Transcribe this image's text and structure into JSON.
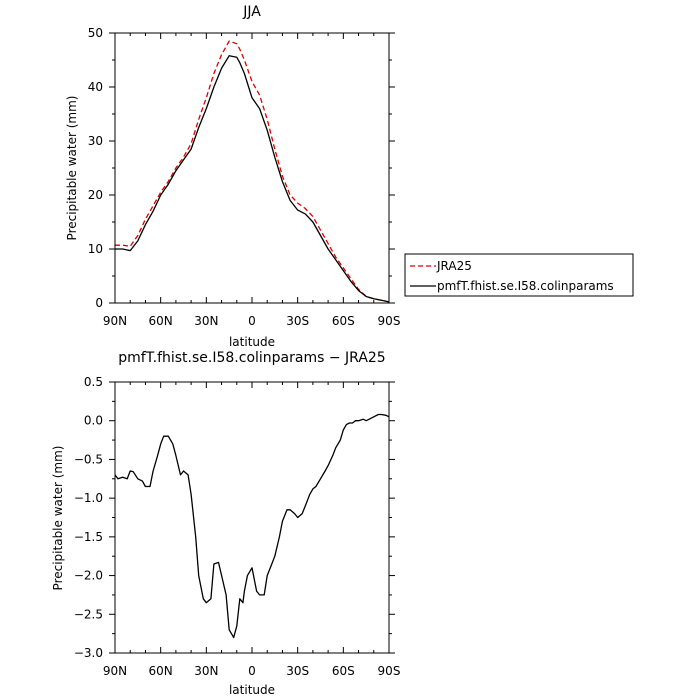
{
  "chart_data": [
    {
      "type": "line",
      "title": "JJA",
      "xlabel": "latitude",
      "ylabel": "Precipitable water (mm)",
      "xlim": [
        90,
        -90
      ],
      "ylim": [
        0,
        50
      ],
      "xticks": [
        {
          "value": 90,
          "label": "90N"
        },
        {
          "value": 60,
          "label": "60N"
        },
        {
          "value": 30,
          "label": "30N"
        },
        {
          "value": 0,
          "label": "0"
        },
        {
          "value": -30,
          "label": "30S"
        },
        {
          "value": -60,
          "label": "60S"
        },
        {
          "value": -90,
          "label": "90S"
        }
      ],
      "yticks": [
        0,
        10,
        20,
        30,
        40,
        50
      ],
      "legend_position": "outside-right",
      "series": [
        {
          "name": "JRA25",
          "color": "#dd0000",
          "dash": "dashed",
          "x": [
            90,
            85,
            80,
            75,
            70,
            65,
            60,
            55,
            50,
            45,
            40,
            35,
            30,
            25,
            20,
            15,
            10,
            8,
            5,
            0,
            -5,
            -10,
            -15,
            -20,
            -25,
            -30,
            -35,
            -40,
            -45,
            -50,
            -55,
            -60,
            -65,
            -70,
            -75,
            -80,
            -85,
            -90
          ],
          "y": [
            10.7,
            10.7,
            10.5,
            12.5,
            15.5,
            18.0,
            20.5,
            22.5,
            25.0,
            27.0,
            29.5,
            34.0,
            38.0,
            42.5,
            46.0,
            48.5,
            48.0,
            47.0,
            45.0,
            41.0,
            38.5,
            34.0,
            28.5,
            23.5,
            20.0,
            18.5,
            17.5,
            16.0,
            13.5,
            11.0,
            8.5,
            6.5,
            4.5,
            2.5,
            1.2,
            0.8,
            0.5,
            0.2
          ]
        },
        {
          "name": "pmfT.fhist.se.I58.colinparams",
          "color": "#000000",
          "dash": "solid",
          "x": [
            90,
            85,
            80,
            75,
            70,
            65,
            60,
            55,
            50,
            45,
            40,
            35,
            30,
            25,
            20,
            15,
            10,
            8,
            5,
            0,
            -5,
            -10,
            -15,
            -20,
            -25,
            -30,
            -35,
            -40,
            -45,
            -50,
            -55,
            -60,
            -65,
            -70,
            -75,
            -80,
            -85,
            -90
          ],
          "y": [
            10.0,
            10.0,
            9.7,
            11.5,
            14.5,
            17.0,
            20.0,
            22.0,
            24.5,
            26.5,
            28.5,
            32.5,
            36.0,
            40.0,
            43.5,
            45.8,
            45.5,
            44.5,
            42.5,
            38.0,
            36.0,
            32.0,
            27.0,
            22.5,
            19.0,
            17.2,
            16.5,
            15.0,
            12.5,
            10.0,
            8.0,
            6.0,
            4.0,
            2.3,
            1.2,
            0.8,
            0.5,
            0.2
          ]
        }
      ]
    },
    {
      "type": "line",
      "title": "pmfT.fhist.se.I58.colinparams − JRA25",
      "xlabel": "latitude",
      "ylabel": "Precipitable water (mm)",
      "xlim": [
        90,
        -90
      ],
      "ylim": [
        -3.0,
        0.5
      ],
      "xticks": [
        {
          "value": 90,
          "label": "90N"
        },
        {
          "value": 60,
          "label": "60N"
        },
        {
          "value": 30,
          "label": "30N"
        },
        {
          "value": 0,
          "label": "0"
        },
        {
          "value": -30,
          "label": "30S"
        },
        {
          "value": -60,
          "label": "60S"
        },
        {
          "value": -90,
          "label": "90S"
        }
      ],
      "yticks": [
        {
          "value": 0.5,
          "label": "0.5"
        },
        {
          "value": 0.0,
          "label": "0.0"
        },
        {
          "value": -0.5,
          "label": "−0.5"
        },
        {
          "value": -1.0,
          "label": "−1.0"
        },
        {
          "value": -1.5,
          "label": "−1.5"
        },
        {
          "value": -2.0,
          "label": "−2.0"
        },
        {
          "value": -2.5,
          "label": "−2.5"
        },
        {
          "value": -3.0,
          "label": "−3.0"
        }
      ],
      "series": [
        {
          "color": "#000000",
          "dash": "solid",
          "x": [
            90,
            88,
            85,
            82,
            80,
            78,
            75,
            72,
            70,
            67,
            65,
            62,
            60,
            58,
            55,
            52,
            50,
            47,
            45,
            42,
            40,
            37,
            35,
            32,
            30,
            27,
            25,
            22,
            20,
            17,
            15,
            12,
            10,
            8,
            6,
            5,
            3,
            0,
            -3,
            -5,
            -8,
            -10,
            -13,
            -15,
            -18,
            -20,
            -23,
            -25,
            -28,
            -30,
            -33,
            -35,
            -38,
            -40,
            -42,
            -45,
            -48,
            -50,
            -53,
            -55,
            -58,
            -60,
            -62,
            -64,
            -66,
            -68,
            -70,
            -73,
            -75,
            -78,
            -80,
            -83,
            -85,
            -88,
            -90
          ],
          "y": [
            -0.7,
            -0.75,
            -0.73,
            -0.75,
            -0.65,
            -0.66,
            -0.75,
            -0.78,
            -0.85,
            -0.85,
            -0.65,
            -0.45,
            -0.3,
            -0.2,
            -0.2,
            -0.3,
            -0.45,
            -0.7,
            -0.65,
            -0.7,
            -0.95,
            -1.5,
            -2.0,
            -2.3,
            -2.35,
            -2.3,
            -1.85,
            -1.83,
            -2.0,
            -2.25,
            -2.7,
            -2.8,
            -2.65,
            -2.3,
            -2.35,
            -2.2,
            -2.0,
            -1.9,
            -2.2,
            -2.25,
            -2.25,
            -2.0,
            -1.85,
            -1.75,
            -1.5,
            -1.3,
            -1.15,
            -1.15,
            -1.2,
            -1.25,
            -1.2,
            -1.1,
            -0.95,
            -0.88,
            -0.85,
            -0.75,
            -0.65,
            -0.58,
            -0.45,
            -0.35,
            -0.25,
            -0.12,
            -0.05,
            -0.03,
            -0.03,
            0.0,
            0.0,
            0.02,
            0.0,
            0.03,
            0.05,
            0.08,
            0.08,
            0.07,
            0.05
          ]
        }
      ]
    }
  ]
}
